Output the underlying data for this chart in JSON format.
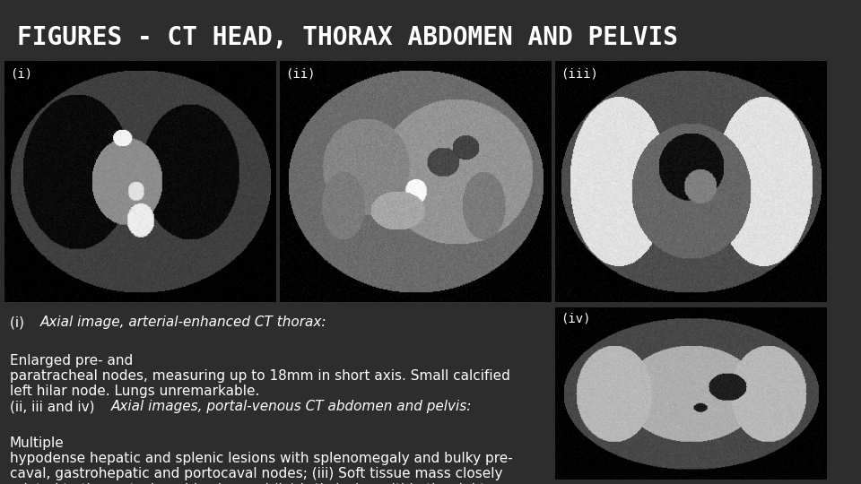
{
  "title": "FIGURES - CT HEAD, THORAX ABDOMEN AND PELVIS",
  "title_fontsize": 20,
  "title_color": "#ffffff",
  "background_color": "#2d2d2d",
  "labels": [
    "(i)",
    "(ii)",
    "(iii)",
    "(iv)"
  ],
  "label_color": "#ffffff",
  "label_fontsize": 10,
  "caption_1_prefix": "(i) ",
  "caption_1_italic": "Axial image, arterial-enhanced CT thorax:",
  "caption_1_normal": " Enlarged pre- and\nparatracheal nodes, measuring up to 18mm in short axis. Small calcified\nleft hilar node. Lungs unremarkable.",
  "caption_2_prefix": "(ii, iii and iv) ",
  "caption_2_italic": "Axial images, portal-venous CT abdomen and pelvis:",
  "caption_2_normal": " Multiple\nhypodense hepatic and splenic lesions with splenomegaly and bulky pre-\ncaval, gastrohepatic and portocaval nodes; (iii) Soft tissue mass closely\nrelated to the rectosigmoid colon and (iv) Lytic lesion within the right\nsacral ala.",
  "caption_fontsize": 11,
  "caption_color": "#ffffff"
}
